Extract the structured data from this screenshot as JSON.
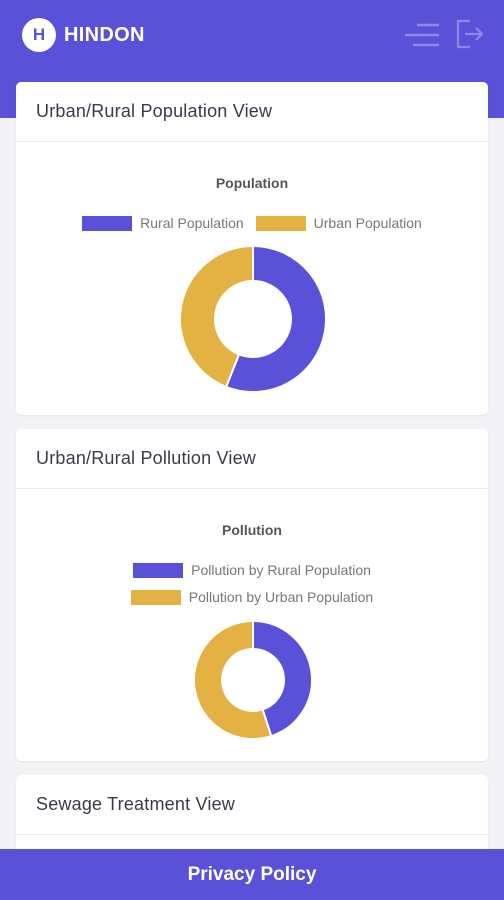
{
  "app": {
    "logo_letter": "H",
    "name": "HINDON"
  },
  "colors": {
    "brand": "#5a51d9",
    "rural": "#5a51d9",
    "urban": "#e4b143"
  },
  "header": {
    "menu_icon": "hamburger-icon",
    "logout_icon": "logout-icon"
  },
  "cards": [
    {
      "title": "Urban/Rural Population View",
      "chart_data": {
        "type": "pie",
        "title": "Population",
        "legend": [
          "Rural Population",
          "Urban Population"
        ],
        "values": [
          56,
          44
        ],
        "donut": true
      }
    },
    {
      "title": "Urban/Rural Pollution View",
      "chart_data": {
        "type": "pie",
        "title": "Pollution",
        "legend": [
          "Pollution by Rural Population",
          "Pollution by Urban Population"
        ],
        "values": [
          45,
          55
        ],
        "donut": true
      }
    },
    {
      "title": "Sewage Treatment View"
    }
  ],
  "footer": {
    "link": "Privacy Policy"
  }
}
